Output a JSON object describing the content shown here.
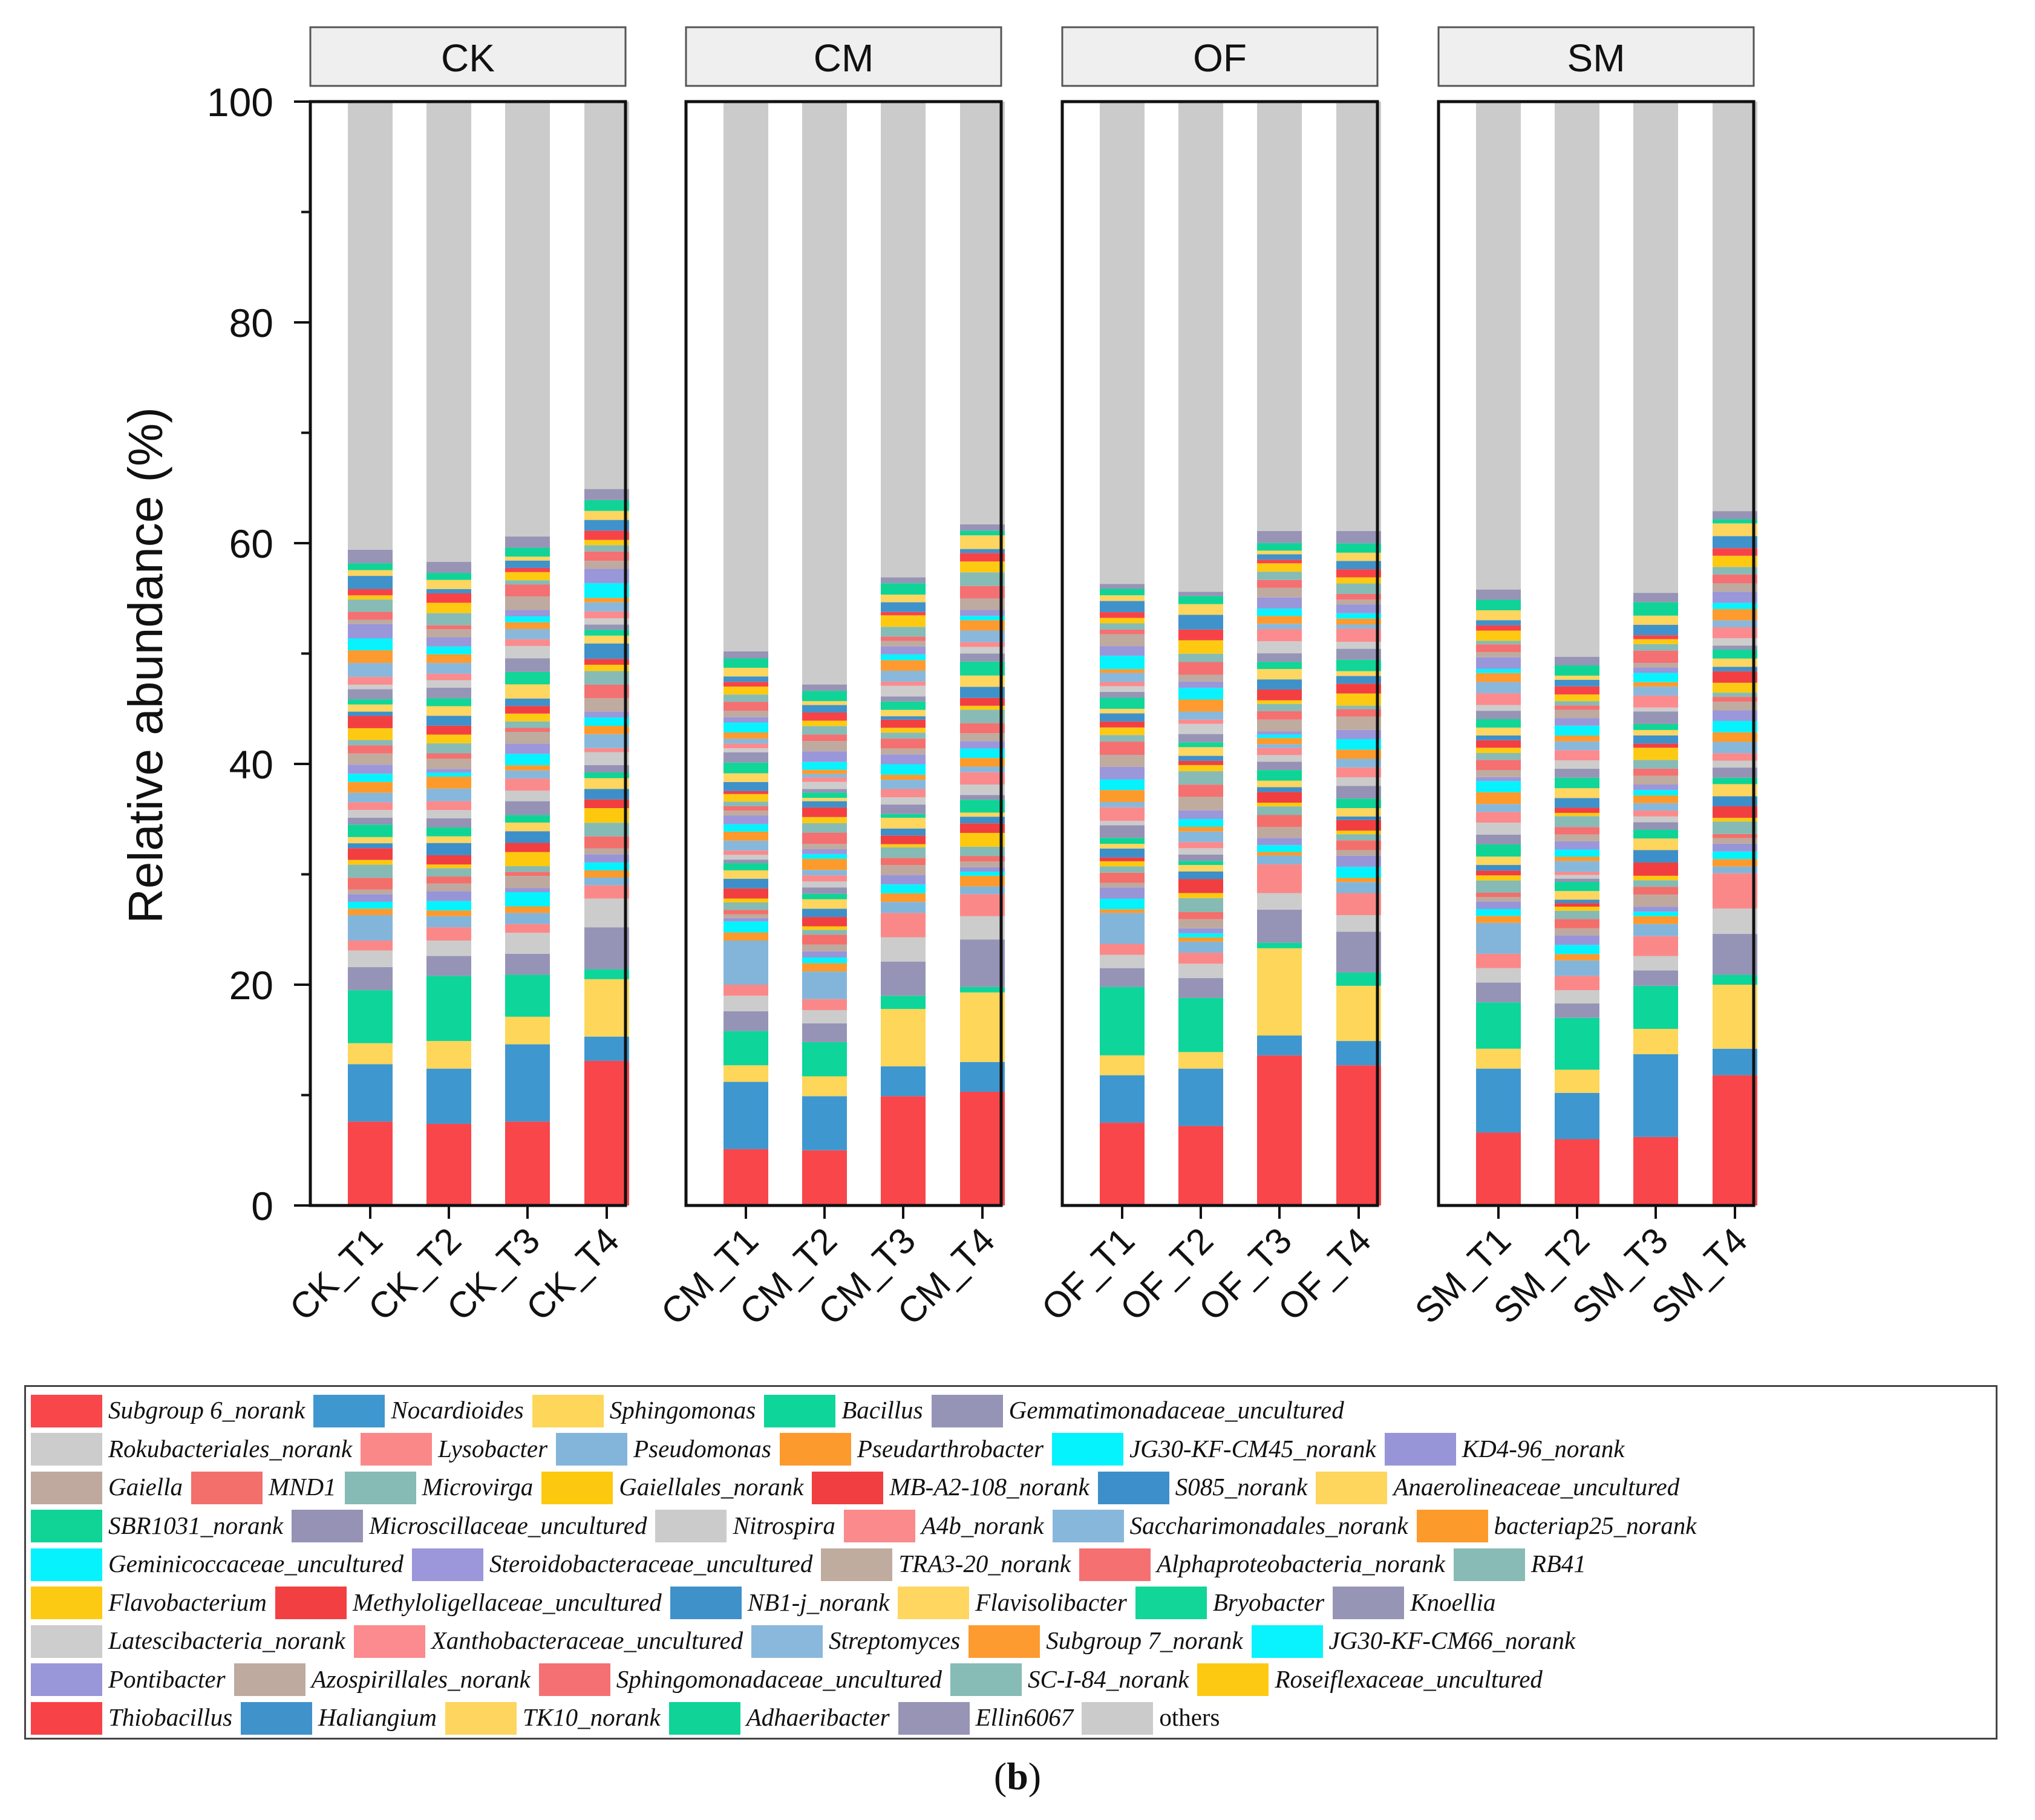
{
  "chart_data": {
    "type": "bar",
    "stacked": true,
    "ylabel": "Relative abundance (%)",
    "ylim": [
      0,
      100
    ],
    "yticks": [
      0,
      20,
      40,
      60,
      80,
      100
    ],
    "panels": [
      {
        "title": "CK",
        "samples": [
          "CK_T1",
          "CK_T2",
          "CK_T3",
          "CK_T4"
        ],
        "top_genera": {
          "Subgroup 6_norank": [
            7.6,
            7.4,
            7.6,
            13.1
          ],
          "Nocardioides": [
            5.2,
            5.0,
            7.0,
            2.2
          ],
          "Sphingomonas": [
            1.9,
            2.5,
            2.5,
            5.2
          ],
          "Bacillus": [
            4.8,
            5.9,
            3.8,
            0.9
          ],
          "Gemmatimonadaceae_uncultured": [
            2.1,
            1.8,
            1.9,
            3.8
          ],
          "Rokubacteriales_norank": [
            1.5,
            1.4,
            1.9,
            2.6
          ],
          "Lysobacter": [
            0.9,
            1.2,
            0.8,
            1.2
          ],
          "Pseudomonas": [
            2.3,
            1.0,
            1.0,
            0.7
          ]
        },
        "stack_total": [
          59.4,
          58.3,
          60.6,
          64.9
        ]
      },
      {
        "title": "CM",
        "samples": [
          "CM_T1",
          "CM_T2",
          "CM_T3",
          "CM_T4"
        ],
        "top_genera": {
          "Subgroup 6_norank": [
            5.1,
            5.0,
            9.9,
            10.3
          ],
          "Nocardioides": [
            6.1,
            4.9,
            2.7,
            2.7
          ],
          "Sphingomonas": [
            1.5,
            1.8,
            5.2,
            6.3
          ],
          "Bacillus": [
            3.1,
            3.1,
            1.2,
            0.5
          ],
          "Gemmatimonadaceae_uncultured": [
            1.8,
            1.7,
            3.1,
            4.3
          ],
          "Rokubacteriales_norank": [
            1.4,
            1.2,
            2.2,
            2.1
          ],
          "Lysobacter": [
            1.0,
            1.0,
            2.2,
            2.0
          ],
          "Pseudomonas": [
            4.0,
            2.5,
            1.0,
            0.7
          ]
        },
        "stack_total": [
          50.2,
          47.2,
          56.9,
          61.7
        ]
      },
      {
        "title": "OF",
        "samples": [
          "OF_T1",
          "OF_T2",
          "OF_T3",
          "OF_T4"
        ],
        "top_genera": {
          "Subgroup 6_norank": [
            7.5,
            7.2,
            13.6,
            12.7
          ],
          "Nocardioides": [
            4.3,
            5.2,
            1.8,
            2.2
          ],
          "Sphingomonas": [
            1.8,
            1.5,
            7.9,
            5.0
          ],
          "Bacillus": [
            6.2,
            4.9,
            0.5,
            1.2
          ],
          "Gemmatimonadaceae_uncultured": [
            1.7,
            1.8,
            3.0,
            3.7
          ],
          "Rokubacteriales_norank": [
            1.2,
            1.3,
            1.5,
            1.5
          ],
          "Lysobacter": [
            1.0,
            1.0,
            2.6,
            2.0
          ],
          "Pseudomonas": [
            2.8,
            1.0,
            0.8,
            1.0
          ]
        },
        "stack_total": [
          56.3,
          55.6,
          61.1,
          61.1
        ]
      },
      {
        "title": "SM",
        "samples": [
          "SM_T1",
          "SM_T2",
          "SM_T3",
          "SM_T4"
        ],
        "top_genera": {
          "Subgroup 6_norank": [
            6.6,
            6.0,
            6.2,
            11.8
          ],
          "Nocardioides": [
            5.8,
            4.2,
            7.5,
            2.4
          ],
          "Sphingomonas": [
            1.8,
            2.1,
            2.3,
            5.8
          ],
          "Bacillus": [
            4.2,
            4.7,
            3.9,
            0.9
          ],
          "Gemmatimonadaceae_uncultured": [
            1.8,
            1.3,
            1.4,
            3.7
          ],
          "Rokubacteriales_norank": [
            1.3,
            1.2,
            1.3,
            2.3
          ],
          "Lysobacter": [
            1.3,
            1.3,
            1.8,
            3.2
          ],
          "Pseudomonas": [
            2.8,
            1.4,
            1.1,
            0.6
          ]
        },
        "stack_total": [
          55.8,
          49.7,
          55.5,
          62.9
        ]
      }
    ],
    "genera": [
      {
        "name": "Subgroup 6_norank",
        "color": "#f8464b"
      },
      {
        "name": "Nocardioides",
        "color": "#3f97cf"
      },
      {
        "name": "Sphingomonas",
        "color": "#fdd65a"
      },
      {
        "name": "Bacillus",
        "color": "#0ed59a"
      },
      {
        "name": "Gemmatimonadaceae_uncultured",
        "color": "#9594b7"
      },
      {
        "name": "Rokubacteriales_norank",
        "color": "#cccccc"
      },
      {
        "name": "Lysobacter",
        "color": "#fb8888"
      },
      {
        "name": "Pseudomonas",
        "color": "#83b5db"
      },
      {
        "name": "Pseudarthrobacter",
        "color": "#fd9a2e"
      },
      {
        "name": "JG30-KF-CM45_norank",
        "color": "#04f3fd"
      },
      {
        "name": "KD4-96_norank",
        "color": "#9795d8"
      },
      {
        "name": "Gaiella",
        "color": "#bfa99e"
      },
      {
        "name": "MND1",
        "color": "#f36f6b"
      },
      {
        "name": "Microvirga",
        "color": "#86bab4"
      },
      {
        "name": "Gaiellales_norank",
        "color": "#fdc90e"
      },
      {
        "name": "MB-A2-108_norank",
        "color": "#f13e40"
      },
      {
        "name": "S085_norank",
        "color": "#3d8fc9"
      },
      {
        "name": "Anaerolineaceae_uncultured",
        "color": "#fed55d"
      },
      {
        "name": "SBR1031_norank",
        "color": "#0fd496"
      },
      {
        "name": "Microscillaceae_uncultured",
        "color": "#9592b5"
      },
      {
        "name": "Nitrospira",
        "color": "#cbcbcb"
      },
      {
        "name": "A4b_norank",
        "color": "#fa8a8c"
      },
      {
        "name": "Saccharimonadales_norank",
        "color": "#87b8dc"
      },
      {
        "name": "bacteriap25_norank",
        "color": "#fd9a2c"
      },
      {
        "name": "Geminicoccaceae_uncultured",
        "color": "#06f2fd"
      },
      {
        "name": "Steroidobacteraceae_uncultured",
        "color": "#9b97da"
      },
      {
        "name": "TRA3-20_norank",
        "color": "#c0ab9f"
      },
      {
        "name": "Alphaproteobacteria_norank",
        "color": "#f47071"
      },
      {
        "name": "RB41",
        "color": "#88bbb6"
      },
      {
        "name": "Flavobacterium",
        "color": "#fdca13"
      },
      {
        "name": "Methyloligellaceae_uncultured",
        "color": "#f24042"
      },
      {
        "name": "NB1-j_norank",
        "color": "#3f91ca"
      },
      {
        "name": "Flavisolibacter",
        "color": "#fed660"
      },
      {
        "name": "Bryobacter",
        "color": "#12d598"
      },
      {
        "name": "Knoellia",
        "color": "#9795b6"
      },
      {
        "name": "Latescibacteria_norank",
        "color": "#cdcdcd"
      },
      {
        "name": "Xanthobacteraceae_uncultured",
        "color": "#fb8b8e"
      },
      {
        "name": "Streptomyces",
        "color": "#89b8dc"
      },
      {
        "name": "Subgroup 7_norank",
        "color": "#fd9b30"
      },
      {
        "name": "JG30-KF-CM66_norank",
        "color": "#08f3fd"
      },
      {
        "name": "Pontibacter",
        "color": "#9996d9"
      },
      {
        "name": "Azospirillales_norank",
        "color": "#bfaaa0"
      },
      {
        "name": "Sphingomonadaceae_uncultured",
        "color": "#f47072"
      },
      {
        "name": "SC-I-84_norank",
        "color": "#87bbb5"
      },
      {
        "name": "Roseiflexaceae_uncultured",
        "color": "#fdca11"
      },
      {
        "name": "Thiobacillus",
        "color": "#f74348"
      },
      {
        "name": "Haliangium",
        "color": "#4092cb"
      },
      {
        "name": "TK10_norank",
        "color": "#fed55e"
      },
      {
        "name": "Adhaeribacter",
        "color": "#10d497"
      },
      {
        "name": "Ellin6067",
        "color": "#9794b6"
      },
      {
        "name": "others",
        "color": "#cbcbcb"
      }
    ]
  },
  "legend_rows": [
    [
      0,
      1,
      2,
      3,
      4
    ],
    [
      5,
      6,
      7,
      8,
      9,
      10
    ],
    [
      11,
      12,
      13,
      14,
      15,
      16,
      17
    ],
    [
      18,
      19,
      20,
      21,
      22,
      23
    ],
    [
      24,
      25,
      26,
      27,
      28
    ],
    [
      29,
      30,
      31,
      32,
      33,
      34
    ],
    [
      35,
      36,
      37,
      38,
      39
    ],
    [
      40,
      41,
      42,
      43,
      44
    ],
    [
      45,
      46,
      47,
      48,
      49,
      50
    ]
  ],
  "caption": "b"
}
